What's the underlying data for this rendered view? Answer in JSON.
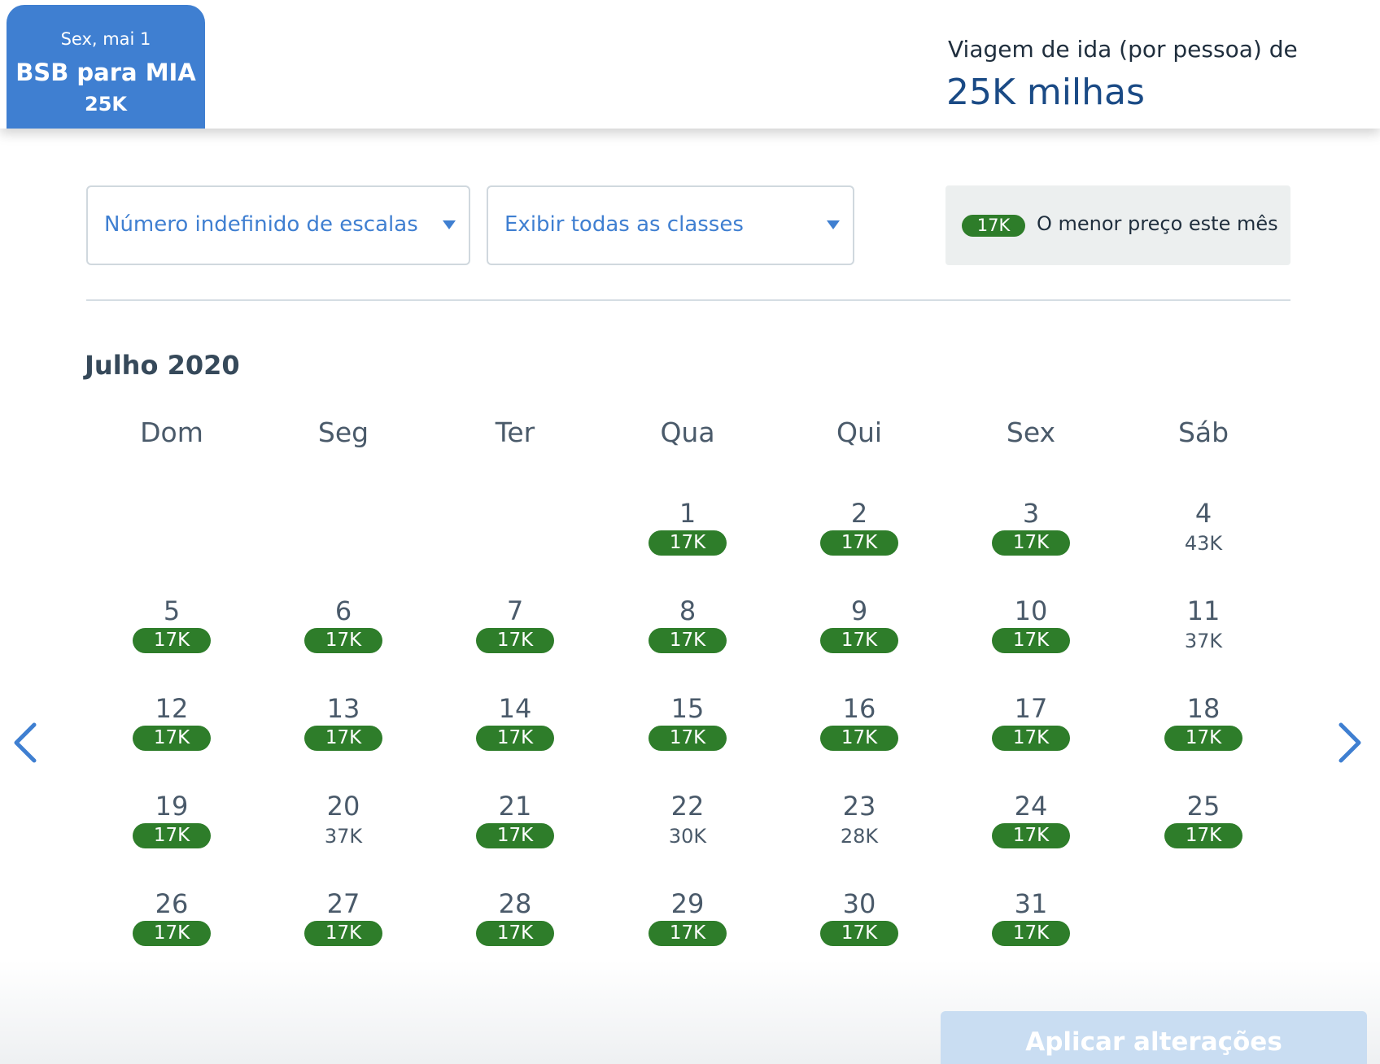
{
  "header": {
    "selected_tab": {
      "date": "Sex, mai 1",
      "route": "BSB para MIA",
      "price": "25K"
    },
    "trip_label": "Viagem de ida (por pessoa) de",
    "trip_miles": "25K milhas"
  },
  "filters": {
    "stops": {
      "value": "Número indefinido de escalas",
      "icon": "caret-down-icon"
    },
    "classes": {
      "value": "Exibir todas as classes",
      "icon": "caret-down-icon"
    }
  },
  "legend": {
    "badge": "17K",
    "text": "O menor preço este mês",
    "color": "#2e7d2a"
  },
  "calendar": {
    "month": "Julho 2020",
    "weekdays": [
      "Dom",
      "Seg",
      "Ter",
      "Qua",
      "Qui",
      "Sex",
      "Sáb"
    ],
    "first_weekday_index": 3,
    "days": [
      {
        "day": "1",
        "price": "17K",
        "lowest": true
      },
      {
        "day": "2",
        "price": "17K",
        "lowest": true
      },
      {
        "day": "3",
        "price": "17K",
        "lowest": true
      },
      {
        "day": "4",
        "price": "43K",
        "lowest": false
      },
      {
        "day": "5",
        "price": "17K",
        "lowest": true
      },
      {
        "day": "6",
        "price": "17K",
        "lowest": true
      },
      {
        "day": "7",
        "price": "17K",
        "lowest": true
      },
      {
        "day": "8",
        "price": "17K",
        "lowest": true
      },
      {
        "day": "9",
        "price": "17K",
        "lowest": true
      },
      {
        "day": "10",
        "price": "17K",
        "lowest": true
      },
      {
        "day": "11",
        "price": "37K",
        "lowest": false
      },
      {
        "day": "12",
        "price": "17K",
        "lowest": true
      },
      {
        "day": "13",
        "price": "17K",
        "lowest": true
      },
      {
        "day": "14",
        "price": "17K",
        "lowest": true
      },
      {
        "day": "15",
        "price": "17K",
        "lowest": true
      },
      {
        "day": "16",
        "price": "17K",
        "lowest": true
      },
      {
        "day": "17",
        "price": "17K",
        "lowest": true
      },
      {
        "day": "18",
        "price": "17K",
        "lowest": true
      },
      {
        "day": "19",
        "price": "17K",
        "lowest": true
      },
      {
        "day": "20",
        "price": "37K",
        "lowest": false
      },
      {
        "day": "21",
        "price": "17K",
        "lowest": true
      },
      {
        "day": "22",
        "price": "30K",
        "lowest": false
      },
      {
        "day": "23",
        "price": "28K",
        "lowest": false
      },
      {
        "day": "24",
        "price": "17K",
        "lowest": true
      },
      {
        "day": "25",
        "price": "17K",
        "lowest": true
      },
      {
        "day": "26",
        "price": "17K",
        "lowest": true
      },
      {
        "day": "27",
        "price": "17K",
        "lowest": true
      },
      {
        "day": "28",
        "price": "17K",
        "lowest": true
      },
      {
        "day": "29",
        "price": "17K",
        "lowest": true
      },
      {
        "day": "30",
        "price": "17K",
        "lowest": true
      },
      {
        "day": "31",
        "price": "17K",
        "lowest": true
      }
    ],
    "prev_icon": "chevron-left-icon",
    "next_icon": "chevron-right-icon"
  },
  "actions": {
    "apply_label": "Aplicar alterações"
  },
  "colors": {
    "accent": "#3f7fd1",
    "lowest_price": "#2e7d2a",
    "apply_disabled": "#c9ddf2"
  }
}
